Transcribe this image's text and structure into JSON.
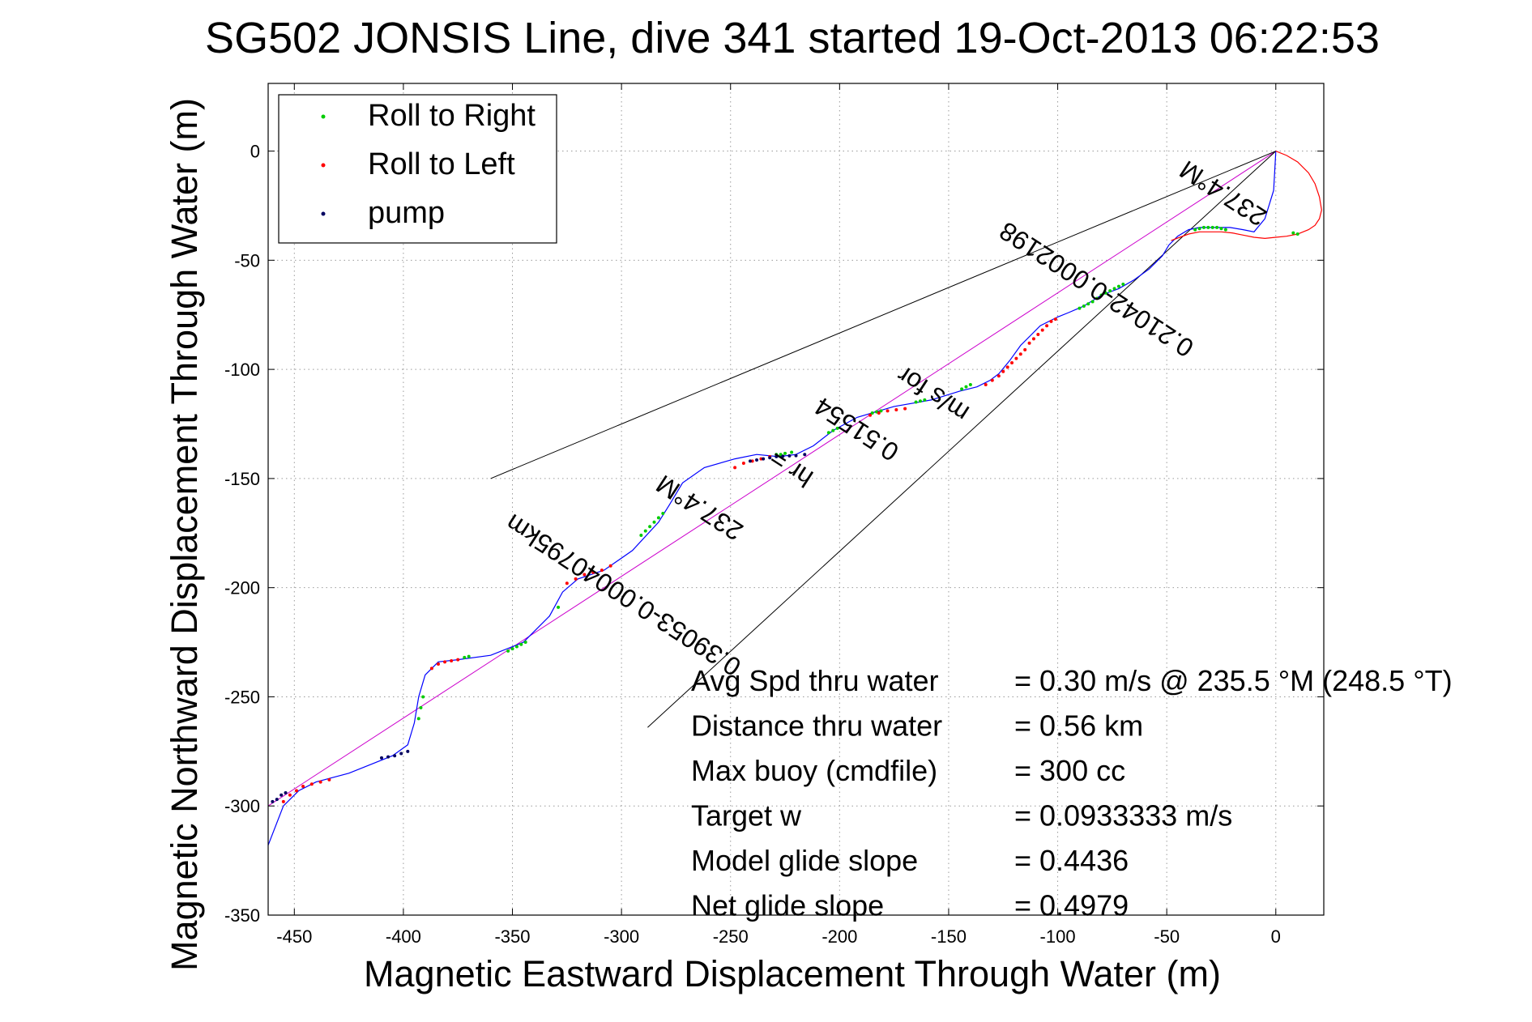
{
  "chart_data": {
    "type": "line",
    "title": "SG502 JONSIS Line, dive 341 started 19-Oct-2013 06:22:53",
    "xlabel": "Magnetic Eastward Displacement Through Water (m)",
    "ylabel": "Magnetic Northward Displacement Through Water (m)",
    "xlim": [
      -462,
      22
    ],
    "ylim": [
      -350,
      31
    ],
    "xticks": [
      -450,
      -400,
      -350,
      -300,
      -250,
      -200,
      -150,
      -100,
      -50,
      0
    ],
    "yticks": [
      0,
      -50,
      -100,
      -150,
      -200,
      -250,
      -300,
      -350
    ],
    "grid": true,
    "legend": {
      "placement": "top-left",
      "entries": [
        {
          "label": "Roll to Right",
          "color": "#00cc00"
        },
        {
          "label": "Roll to Left",
          "color": "#ff0000"
        },
        {
          "label": "pump",
          "color": "#000060"
        }
      ]
    },
    "series": [
      {
        "type": "track",
        "color": "#0000ff",
        "x": [
          -462,
          -455,
          -448,
          -440,
          -425,
          -405,
          -398,
          -395,
          -393,
          -390,
          -384,
          -375,
          -360,
          -345,
          -333,
          -327,
          -320,
          -308,
          -295,
          -283,
          -278,
          -272,
          -262,
          -248,
          -238,
          -228,
          -220,
          -212,
          -203,
          -192,
          -175,
          -158,
          -145,
          -137,
          -131,
          -127,
          -122,
          -117,
          -112,
          -108,
          -100,
          -95,
          -88,
          -80,
          -72,
          -65,
          -58,
          -52,
          -49,
          -45,
          -40,
          -35,
          -28,
          -21,
          -15,
          -10,
          -5,
          -1,
          0
        ],
        "y": [
          -318,
          -300,
          -293,
          -289,
          -285,
          -277,
          -272,
          -262,
          -250,
          -240,
          -234,
          -233,
          -231,
          -225,
          -213,
          -202,
          -196,
          -192,
          -183,
          -170,
          -162,
          -152,
          -145,
          -141,
          -139,
          -140,
          -139,
          -135,
          -128,
          -122,
          -117,
          -114,
          -110,
          -108,
          -105,
          -102,
          -96,
          -89,
          -84,
          -80,
          -76,
          -74,
          -71,
          -66,
          -63,
          -59,
          -54,
          -48,
          -43,
          -39,
          -36,
          -35,
          -35,
          -35,
          -36,
          -37,
          -31,
          -18,
          0
        ]
      },
      {
        "type": "track",
        "color": "#ff0000",
        "x": [
          0,
          5,
          10,
          15,
          18,
          20,
          21,
          20,
          18,
          15,
          10,
          5,
          0,
          -5,
          -10,
          -15,
          -20,
          -25,
          -30,
          -35,
          -40,
          -44,
          -48
        ],
        "y": [
          0,
          -2,
          -5,
          -10,
          -15,
          -21,
          -27,
          -31,
          -34,
          -36,
          -38,
          -39,
          -39.5,
          -40,
          -39.5,
          -38.5,
          -37.5,
          -37,
          -37,
          -37,
          -38,
          -39.5,
          -41
        ]
      },
      {
        "type": "guide",
        "color": "#cc00cc",
        "x": [
          0,
          -462
        ],
        "y": [
          0,
          -300
        ]
      },
      {
        "type": "guide",
        "color": "#000000",
        "x": [
          0,
          -360
        ],
        "y": [
          0,
          -150
        ]
      },
      {
        "type": "guide",
        "color": "#000000",
        "x": [
          0,
          -288
        ],
        "y": [
          0,
          -264
        ]
      }
    ],
    "roll_right_points": {
      "color": "#00cc00",
      "x": [
        -393,
        -392,
        -391,
        -372,
        -370,
        -352,
        -350,
        -348,
        -346,
        -344,
        -329,
        -291,
        -289,
        -287,
        -285,
        -283,
        -281,
        -229,
        -227,
        -225,
        -222,
        -205,
        -203,
        -201,
        -185,
        -183,
        -181,
        -165,
        -163,
        -161,
        -144,
        -142,
        -140,
        -90,
        -88,
        -86,
        -84,
        -82,
        -80,
        -78,
        -76,
        -74,
        -72,
        -70,
        -37,
        -35,
        -33,
        -31,
        -29,
        -27,
        -25,
        -23,
        8,
        10
      ],
      "y": [
        -260,
        -255,
        -250,
        -232,
        -231.5,
        -229,
        -228,
        -227,
        -226,
        -225,
        -209,
        -176,
        -174,
        -172,
        -170,
        -168,
        -166,
        -139,
        -139,
        -138.5,
        -138,
        -129,
        -128,
        -127,
        -120,
        -119.5,
        -119,
        -115,
        -114.5,
        -114,
        -109,
        -108,
        -107,
        -72,
        -71,
        -70,
        -69,
        -67.5,
        -66,
        -65,
        -64,
        -63,
        -62,
        -61,
        -36,
        -35.5,
        -35,
        -35,
        -35,
        -35,
        -35.5,
        -36,
        -37.5,
        -38
      ]
    },
    "roll_left_points": {
      "color": "#ff0000",
      "x": [
        -455,
        -452,
        -449,
        -446,
        -442,
        -438,
        -434,
        -387,
        -384,
        -381,
        -378,
        -375,
        -325,
        -321,
        -317,
        -313,
        -309,
        -305,
        -248,
        -244,
        -240,
        -236,
        -232,
        -186,
        -182,
        -178,
        -174,
        -170,
        -133,
        -130,
        -127,
        -125,
        -123,
        -121,
        -119,
        -117,
        -115,
        -113,
        -111,
        -109,
        -107,
        -105,
        -103,
        -101
      ],
      "y": [
        -298,
        -295,
        -293,
        -291,
        -290,
        -289,
        -288,
        -237,
        -235,
        -234,
        -233.5,
        -233,
        -198,
        -196,
        -194,
        -193,
        -192,
        -190,
        -145,
        -143,
        -142,
        -141,
        -140,
        -121,
        -120,
        -119,
        -118.5,
        -118,
        -107,
        -105,
        -103,
        -101,
        -99,
        -97,
        -95,
        -93,
        -91,
        -88,
        -86,
        -84,
        -82,
        -80,
        -78,
        -77
      ]
    },
    "pump_points": {
      "color": "#000060",
      "x": [
        -460,
        -458,
        -456,
        -454,
        -410,
        -407,
        -404,
        -401,
        -398,
        -241,
        -238,
        -235,
        -232,
        -229,
        -226,
        -223,
        -220,
        -216
      ],
      "y": [
        -298,
        -297,
        -295,
        -294,
        -278,
        -277.5,
        -277,
        -276,
        -275,
        -142,
        -141.5,
        -141,
        -140.5,
        -140,
        -139.8,
        -139.6,
        -139.5,
        -139
      ]
    },
    "annotations": [
      {
        "text": "237.4°M",
        "x": -262,
        "y": -160,
        "rotation": 213
      },
      {
        "text": "0.39053-0.00040795km",
        "x": -297,
        "y": -200,
        "rotation": 213
      },
      {
        "text": "hr =",
        "x": -220,
        "y": -142,
        "rotation": 213
      },
      {
        "text": "0.51554",
        "x": -190,
        "y": -124,
        "rotation": 213
      },
      {
        "text": "m/s for",
        "x": -155,
        "y": -108,
        "rotation": 213
      },
      {
        "text": "0.21042-0.0002198",
        "x": -80,
        "y": -60,
        "rotation": 213
      },
      {
        "text": "237.4°M",
        "x": -22,
        "y": -16,
        "rotation": 213
      }
    ],
    "stats": [
      {
        "label": "Avg Spd thru water",
        "value": "=  0.30 m/s @ 235.5 °M (248.5 °T)"
      },
      {
        "label": "Distance thru water",
        "value": "=  0.56 km"
      },
      {
        "label": "Max buoy (cmdfile)",
        "value": "= 300 cc"
      },
      {
        "label": "Target w",
        "value": "= 0.0933333 m/s"
      },
      {
        "label": "Model glide slope",
        "value": "= 0.4436"
      },
      {
        "label": "Net glide slope",
        "value": "= 0.4979"
      }
    ]
  }
}
